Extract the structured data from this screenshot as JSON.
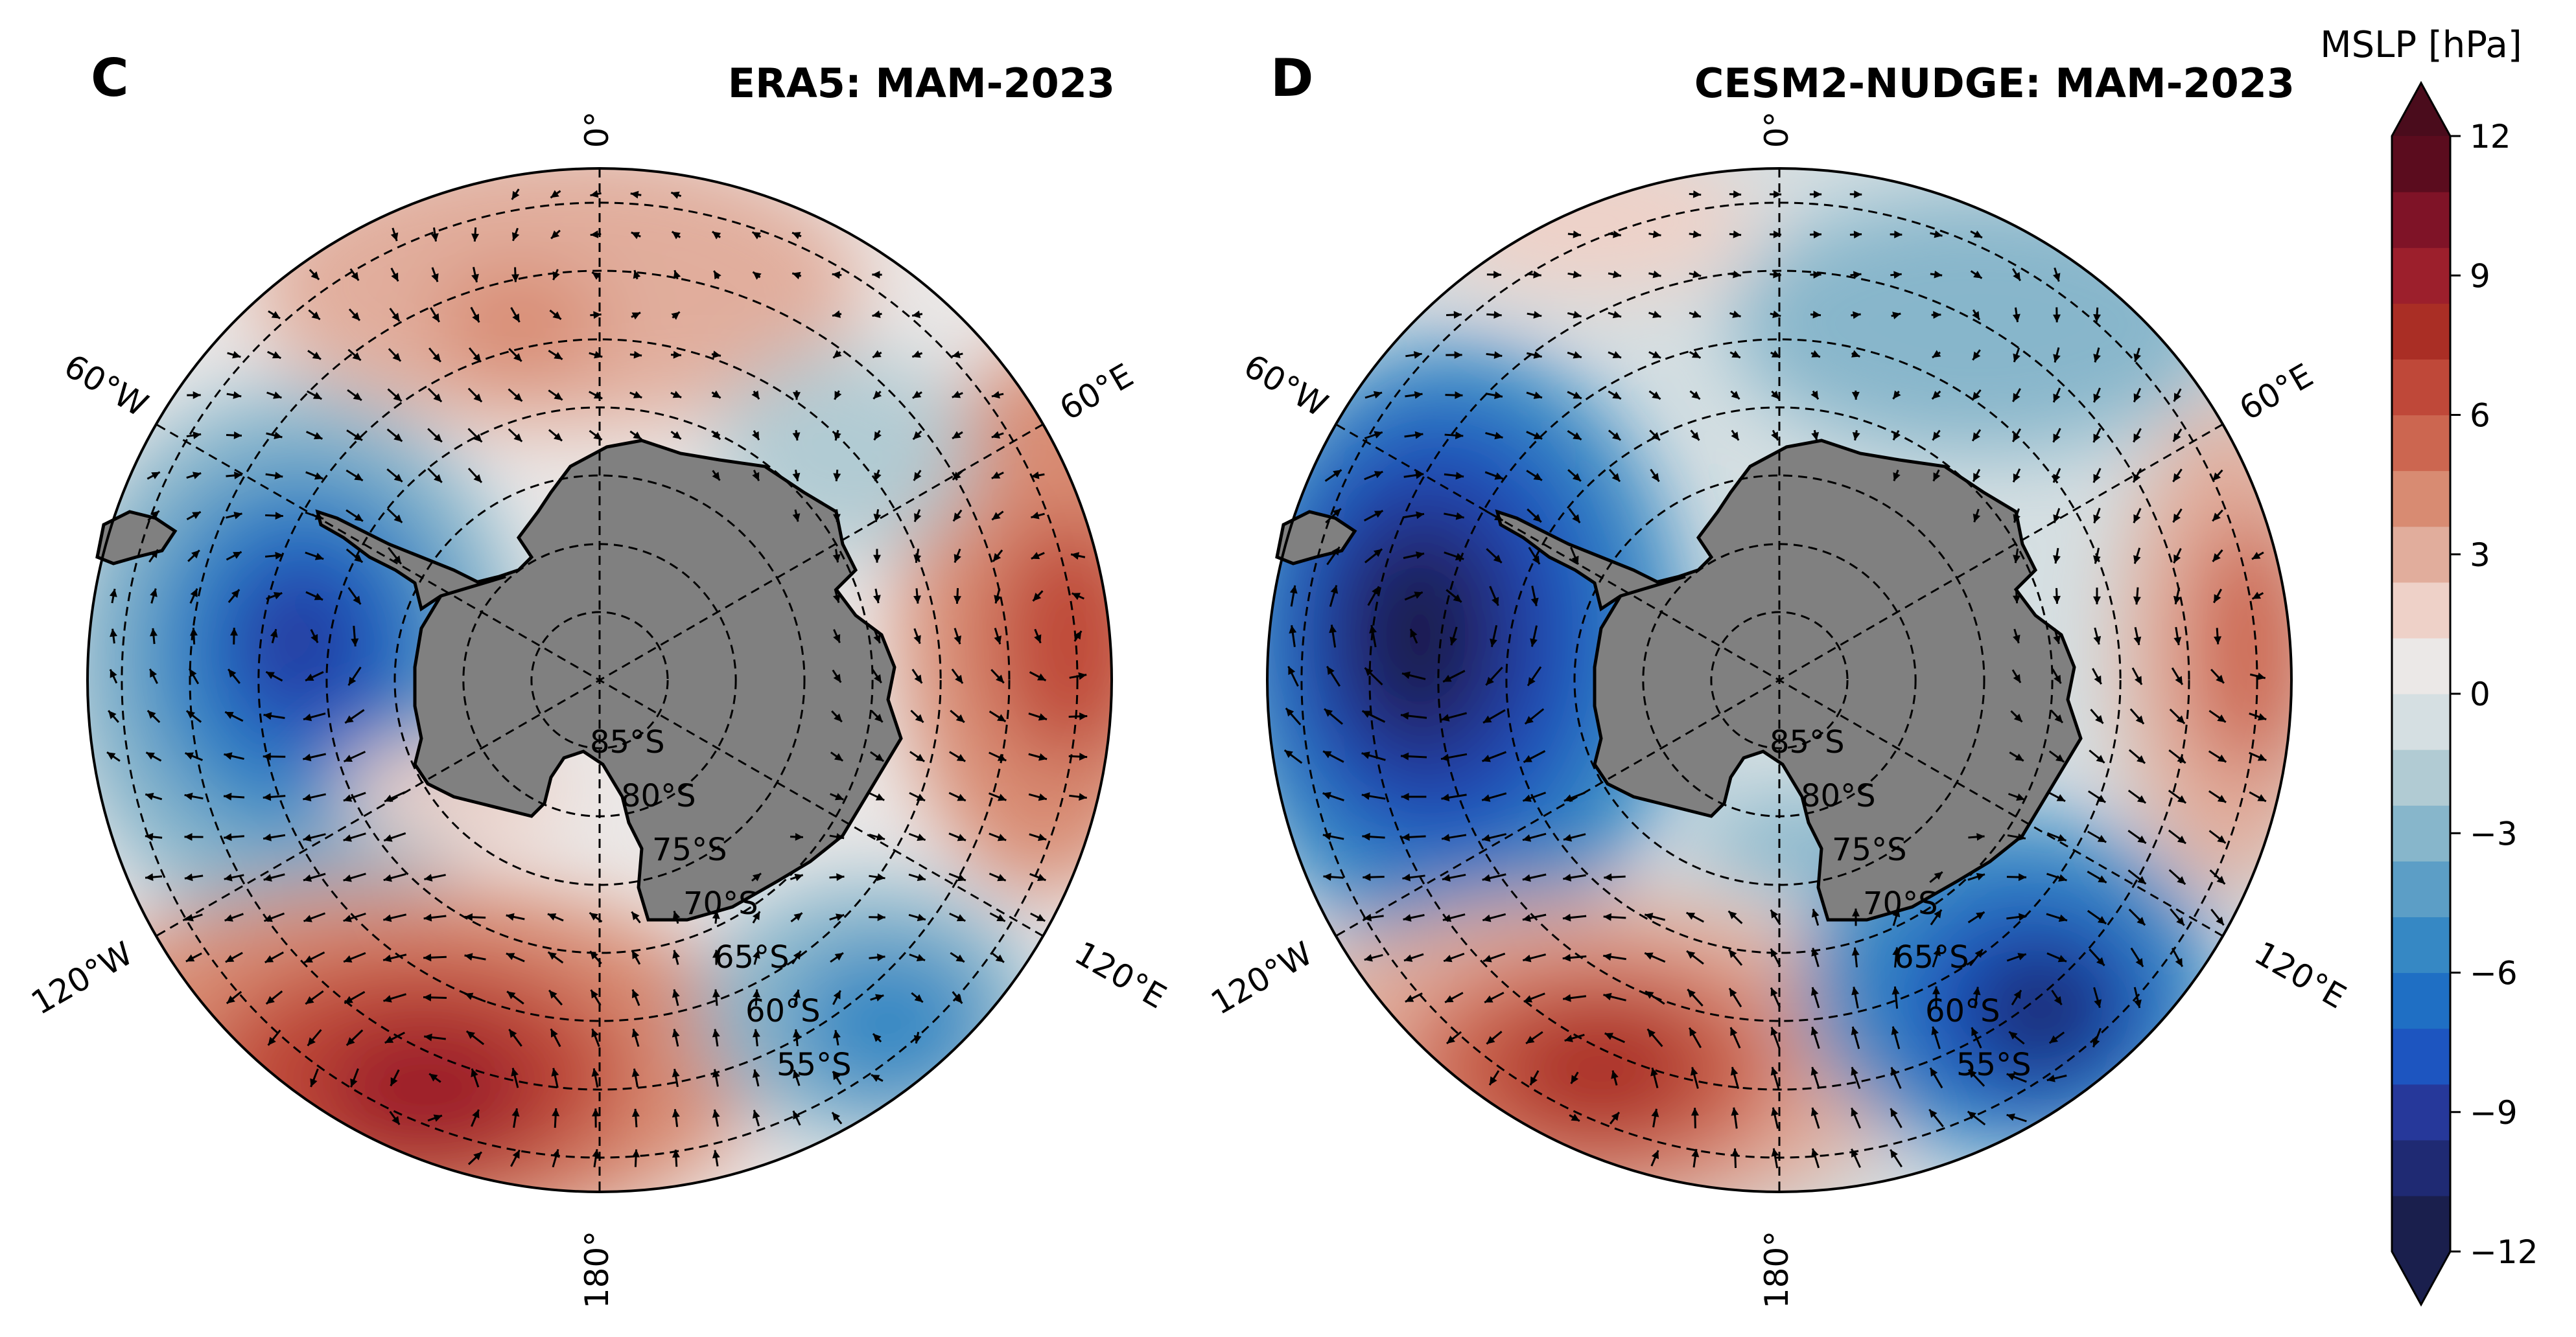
{
  "panels": [
    {
      "letter": "C",
      "title": "ERA5: MAM-2023",
      "anomaly_centers_hPa": [
        {
          "label": "low-west",
          "value": -10
        },
        {
          "label": "high-southwest",
          "value": 9
        },
        {
          "label": "high-east",
          "value": 7
        },
        {
          "label": "low-southeast",
          "value": -6
        },
        {
          "label": "high-north",
          "value": 2
        }
      ]
    },
    {
      "letter": "D",
      "title": "CESM2-NUDGE: MAM-2023",
      "anomaly_centers_hPa": [
        {
          "label": "low-west",
          "value": -12
        },
        {
          "label": "high-southwest",
          "value": 7
        },
        {
          "label": "high-east",
          "value": 5
        },
        {
          "label": "low-southeast",
          "value": -11
        },
        {
          "label": "low-north",
          "value": -4
        }
      ]
    }
  ],
  "meridian_labels": {
    "top": "0°",
    "upper_right": "60°E",
    "lower_right": "120°E",
    "bottom": "180°",
    "lower_left": "120°W",
    "upper_left": "60°W"
  },
  "latitude_labels": [
    "85°S",
    "80°S",
    "75°S",
    "70°S",
    "65°S",
    "60°S",
    "55°S"
  ],
  "colorbar": {
    "title": "MSLP [hPa]",
    "ticks": [
      "12",
      "9",
      "6",
      "3",
      "0",
      "−3",
      "−6",
      "−9",
      "−12"
    ],
    "min": -12,
    "max": 12,
    "step": 1.5,
    "colors": [
      "#1a1f4d",
      "#1f2a73",
      "#26389a",
      "#1d55c0",
      "#1f6fc4",
      "#3688c4",
      "#5c9ec6",
      "#87b6cb",
      "#b1cbd3",
      "#d5dfe2",
      "#ebe8e7",
      "#eed1c8",
      "#e1ad9c",
      "#d88b72",
      "#cc6650",
      "#bf4839",
      "#aa2e25",
      "#9c1f2c",
      "#7f1327",
      "#5b0c1e"
    ],
    "under_color": "#1a1f4d",
    "over_color": "#4a0c1c"
  },
  "colors": {
    "land": "#808080",
    "coast": "#000000",
    "grid": "#000000"
  }
}
